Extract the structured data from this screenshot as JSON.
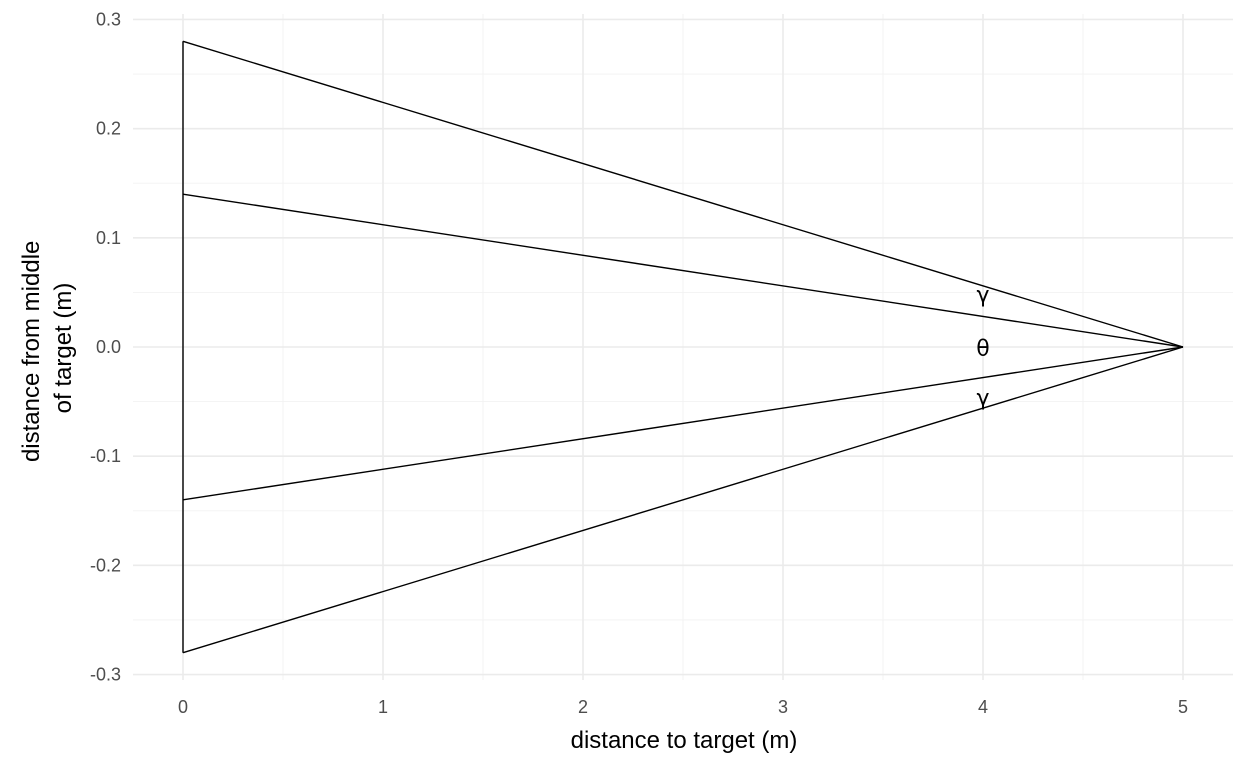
{
  "chart_data": {
    "type": "line",
    "title": "",
    "xlabel": "distance to target (m)",
    "ylabel_lines": [
      "distance from middle",
      "of target (m)"
    ],
    "xlim": [
      -0.25,
      5.25
    ],
    "ylim": [
      -0.305,
      0.305
    ],
    "x_ticks": [
      0,
      1,
      2,
      3,
      4,
      5
    ],
    "x_tick_labels": [
      "0",
      "1",
      "2",
      "3",
      "4",
      "5"
    ],
    "y_ticks": [
      -0.3,
      -0.2,
      -0.1,
      0.0,
      0.1,
      0.2,
      0.3
    ],
    "y_tick_labels": [
      "-0.3",
      "-0.2",
      "-0.1",
      "0.0",
      "0.1",
      "0.2",
      "0.3"
    ],
    "grid": true,
    "legend": "none",
    "segments": [
      {
        "x": [
          0,
          0
        ],
        "y": [
          -0.28,
          0.28
        ]
      },
      {
        "x": [
          0,
          5
        ],
        "y": [
          0.28,
          0
        ]
      },
      {
        "x": [
          0,
          5
        ],
        "y": [
          0.14,
          0
        ]
      },
      {
        "x": [
          0,
          5
        ],
        "y": [
          -0.14,
          0
        ]
      },
      {
        "x": [
          0,
          5
        ],
        "y": [
          -0.28,
          0
        ]
      }
    ],
    "annotations": [
      {
        "text": "γ",
        "x": 4,
        "y": 0.047
      },
      {
        "text": "θ",
        "x": 4,
        "y": -0.002
      },
      {
        "text": "γ",
        "x": 4,
        "y": -0.047
      }
    ],
    "line_color": "#000000"
  }
}
